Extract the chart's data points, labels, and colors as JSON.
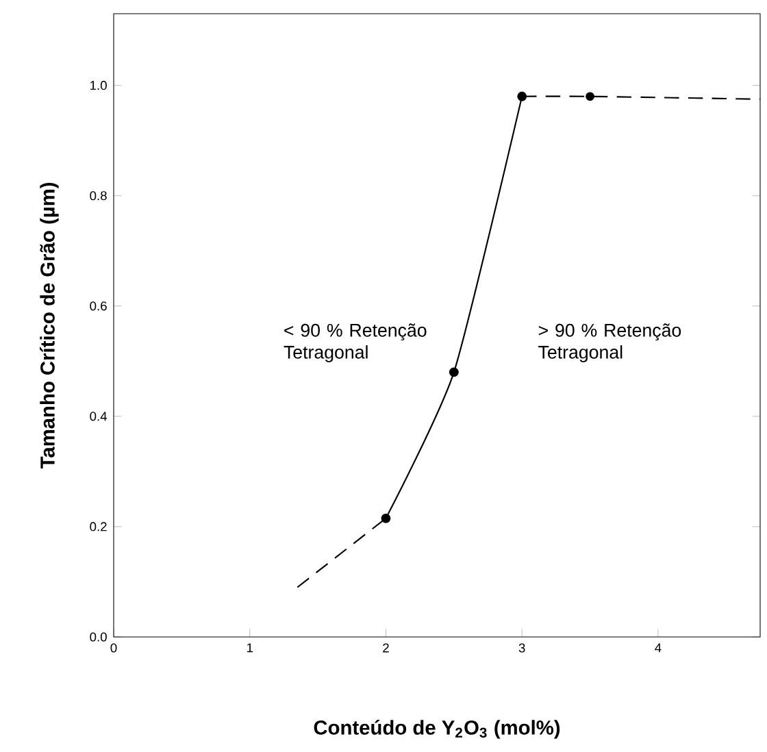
{
  "chart_data": {
    "type": "line",
    "xlabel": "Conteúdo de Y$_{2}$O$_{3}$ (mol%)",
    "ylabel": "Tamanho Crítico de Grão (µm)",
    "xlim": [
      0,
      4.75
    ],
    "ylim": [
      0,
      1.13
    ],
    "xticks": [
      0,
      1,
      2,
      3,
      4
    ],
    "yticks": [
      {
        "value": 0,
        "label": "0.0"
      },
      {
        "value": 0.2,
        "label": "0.2"
      },
      {
        "value": 0.4,
        "label": "0.4"
      },
      {
        "value": 0.6,
        "label": "0.6"
      },
      {
        "value": 0.8,
        "label": "0.8"
      },
      {
        "value": 1.0,
        "label": "1.0"
      }
    ],
    "series": [
      {
        "color": "#000000",
        "x": [
          1.35,
          2
        ],
        "values": [
          0.09,
          0.215
        ],
        "line_style": "dashed"
      },
      {
        "color": "#000000",
        "x": [
          2,
          2.5,
          3
        ],
        "values": [
          0.215,
          0.48,
          0.98
        ],
        "line_style": "solid",
        "marker": "circle"
      },
      {
        "color": "#000000",
        "x": [
          3,
          3.5,
          4.75
        ],
        "values": [
          0.98,
          0.98,
          0.975
        ],
        "line_style": "dashed"
      },
      {
        "type": "scatter",
        "color": "#000000",
        "x": [
          3.5
        ],
        "values": [
          0.98
        ],
        "marker": "circle"
      }
    ],
    "annotations": [
      "< 90 % Retenção Tetragonal",
      "> 90 % Retenção Tetragonal"
    ]
  }
}
